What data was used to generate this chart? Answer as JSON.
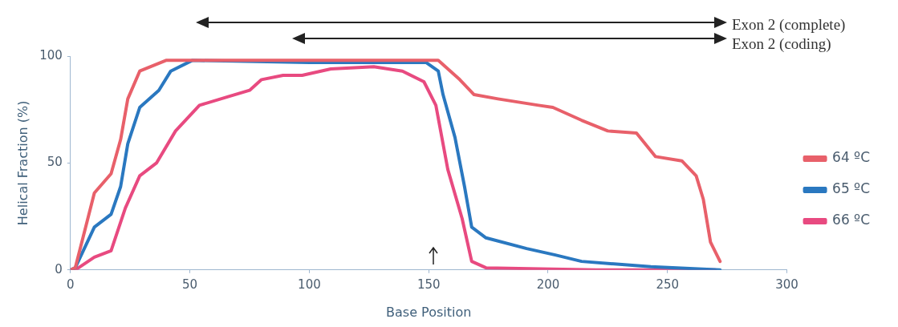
{
  "chart_data": {
    "type": "line",
    "xlabel": "Base Position",
    "ylabel": "Helical Fraction (%)",
    "xlim": [
      0,
      300
    ],
    "xticks": [
      0,
      50,
      100,
      150,
      200,
      250,
      300
    ],
    "ylim": [
      0,
      100
    ],
    "yticks": [
      0,
      50,
      100
    ],
    "grid": false,
    "legend": "right",
    "marker": "none",
    "line_style": "solid",
    "annotations": [
      "Exon 2 (complete)",
      "Exon 2 (coding)"
    ],
    "series": [
      {
        "name": "64 ºC",
        "color": "#e8606a",
        "x": [
          0,
          2,
          10,
          17,
          21,
          24,
          29,
          40,
          80,
          120,
          154,
          163,
          169,
          179,
          196,
          202,
          214,
          225,
          237,
          245,
          256,
          262,
          265,
          268,
          272
        ],
        "values": [
          0,
          1,
          36,
          45,
          61,
          80,
          93,
          98,
          98,
          98,
          98,
          89,
          82,
          80,
          77,
          76,
          70,
          65,
          64,
          53,
          51,
          44,
          33,
          13,
          4
        ]
      },
      {
        "name": "65 ºC",
        "color": "#2a78c0",
        "x": [
          0,
          2,
          10,
          17,
          21,
          24,
          29,
          37,
          42,
          51,
          100,
          149,
          154,
          156,
          161,
          165,
          168,
          174,
          191,
          203,
          214,
          243,
          272
        ],
        "values": [
          0,
          1,
          20,
          26,
          39,
          59,
          76,
          84,
          93,
          98,
          97,
          97,
          93,
          82,
          62,
          39,
          20,
          15,
          10,
          7,
          4,
          1.5,
          0
        ]
      },
      {
        "name": "66 ºC",
        "color": "#e84a80",
        "x": [
          0,
          2,
          10,
          17,
          23,
          29,
          36,
          44,
          54,
          66,
          75,
          80,
          89,
          97,
          109,
          127,
          139,
          148,
          153,
          158,
          164,
          168,
          174,
          220,
          270
        ],
        "values": [
          0,
          0,
          6,
          9,
          29,
          44,
          50,
          65,
          77,
          81,
          84,
          89,
          91,
          91,
          94,
          95,
          93,
          88,
          77,
          47,
          24,
          4,
          1,
          0,
          0
        ]
      }
    ]
  }
}
